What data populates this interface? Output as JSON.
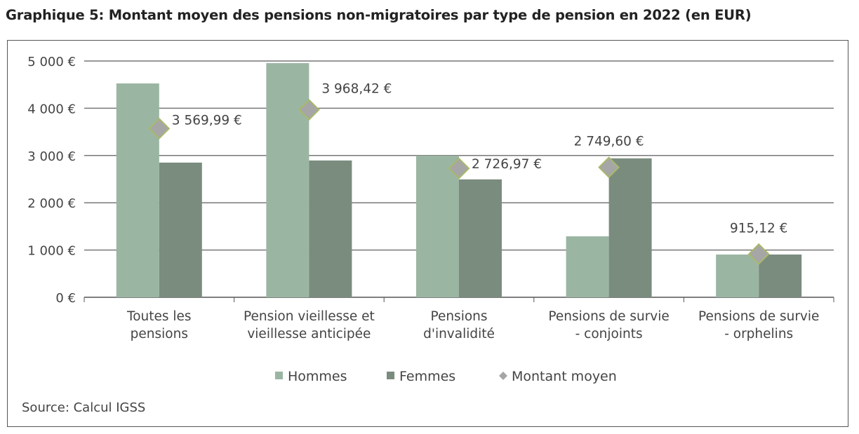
{
  "chart_data": {
    "type": "bar",
    "title": "Graphique 5: Montant moyen des pensions non-migratoires par type de pension en 2022 (en EUR)",
    "categories": [
      [
        "Toutes les",
        "pensions"
      ],
      [
        "Pension vieillesse et",
        "vieillesse anticipée"
      ],
      [
        "Pensions",
        "d'invalidité"
      ],
      [
        "Pensions de survie",
        "- conjoints"
      ],
      [
        "Pensions de survie",
        "- orphelins"
      ]
    ],
    "series": [
      {
        "name": "Hommes",
        "type": "bar",
        "color": "#9bb5a3",
        "values": [
          4525,
          4955,
          3000,
          1290,
          905
        ]
      },
      {
        "name": "Femmes",
        "type": "bar",
        "color": "#7a8c7e",
        "values": [
          2850,
          2895,
          2495,
          2940,
          905
        ]
      },
      {
        "name": "Montant moyen",
        "type": "marker",
        "color": "#a6a6a6",
        "values": [
          3569.99,
          3968.42,
          2726.97,
          2749.6,
          915.12
        ],
        "labels": [
          "3 569,99 €",
          "3 968,42 €",
          "2 726,97 €",
          "2 749,60 €",
          "915,12 €"
        ]
      }
    ],
    "yticks": [
      "0 €",
      "1 000 €",
      "2 000 €",
      "3 000 €",
      "4 000 €",
      "5 000 €"
    ],
    "ylim": [
      0,
      5000
    ],
    "grid": true,
    "legend": "bottom",
    "source": "Source: Calcul IGSS"
  }
}
